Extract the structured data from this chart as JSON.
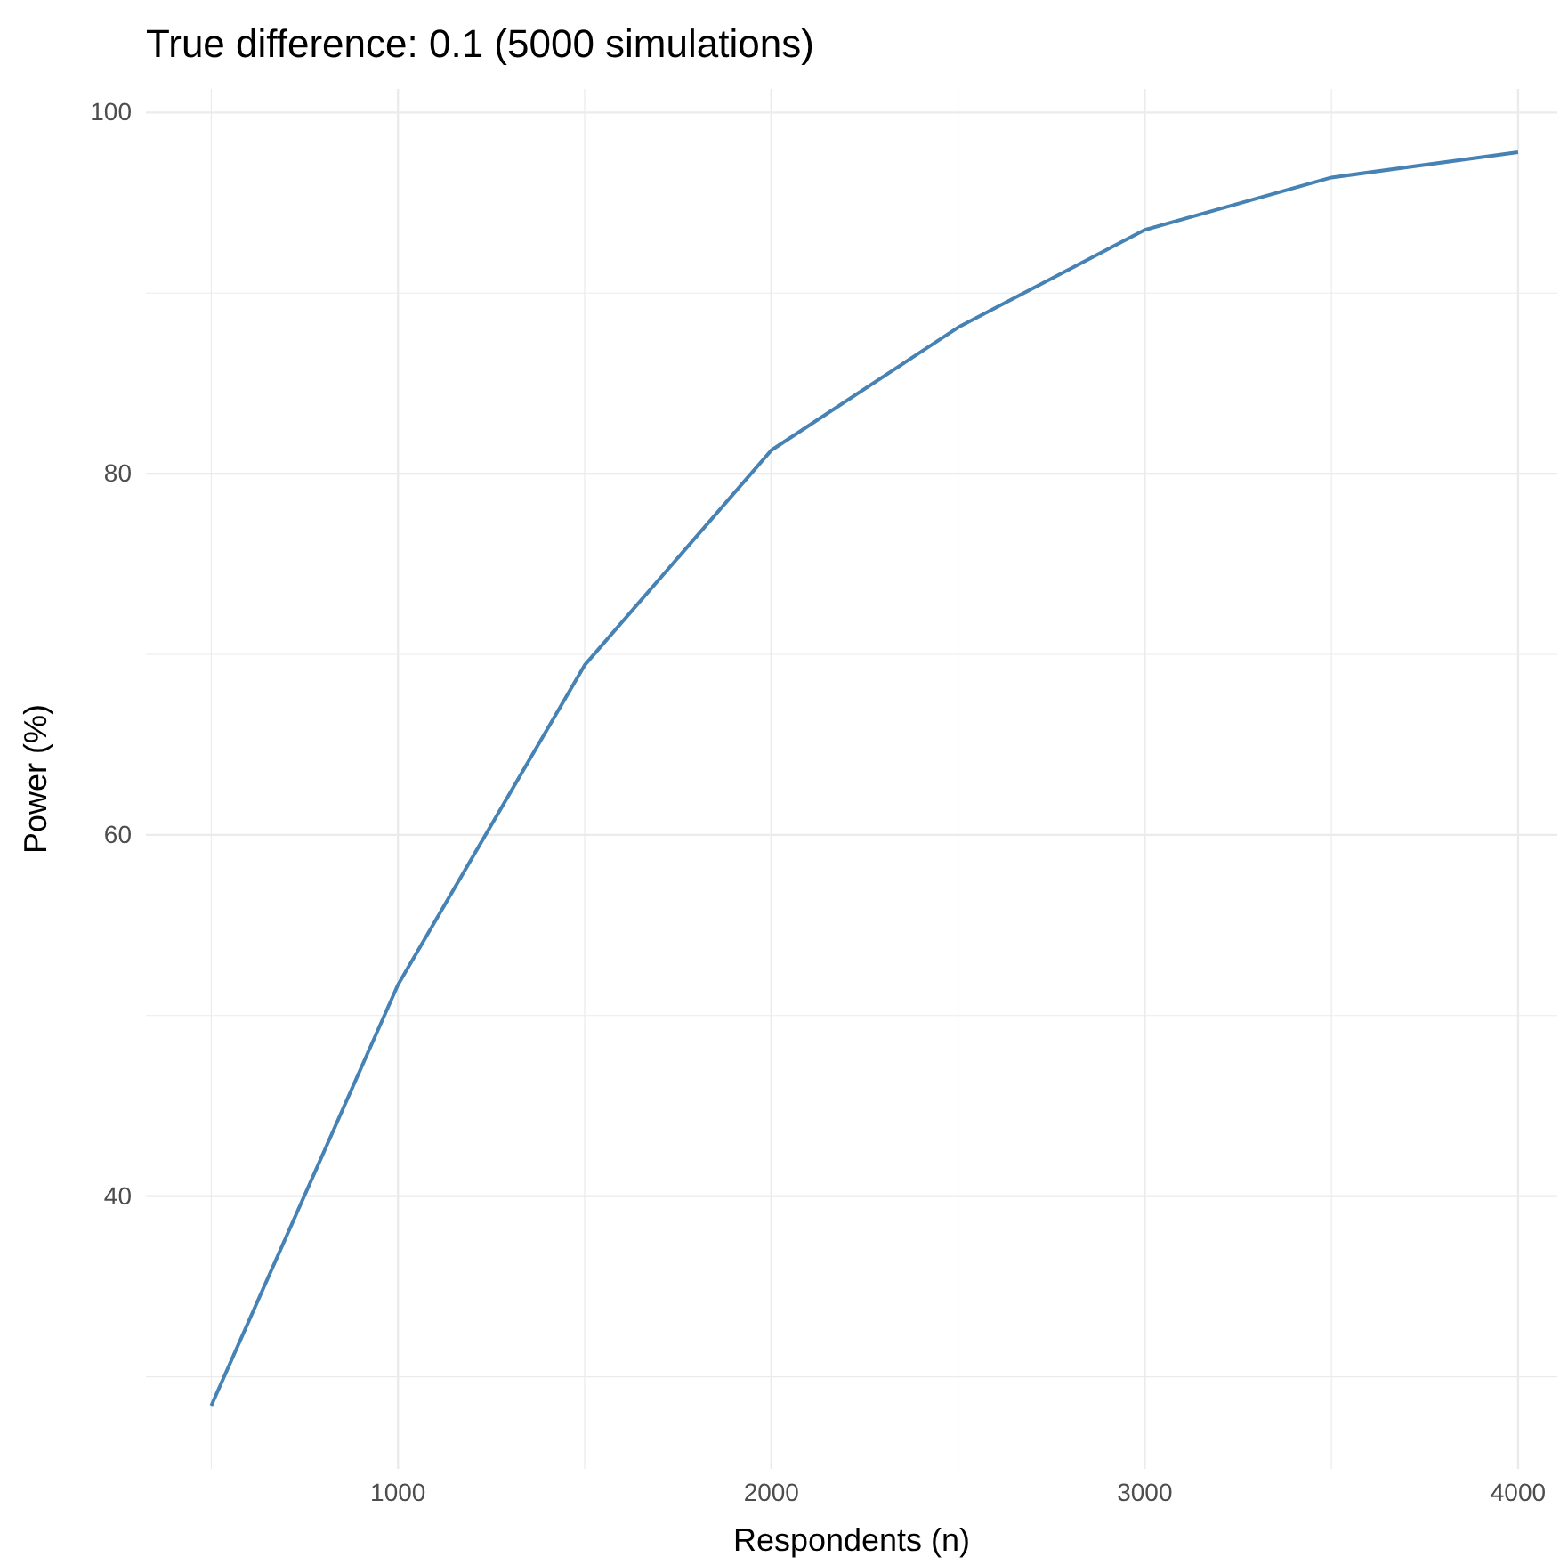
{
  "chart_data": {
    "type": "line",
    "title": "True difference: 0.1 (5000 simulations)",
    "xlabel": "Respondents (n)",
    "ylabel": "Power (%)",
    "x": [
      500,
      1000,
      1500,
      2000,
      2500,
      3000,
      3500,
      4000
    ],
    "series": [
      {
        "color": "#4682b4",
        "values": [
          28.4,
          51.7,
          69.4,
          81.3,
          88.1,
          93.5,
          96.4,
          97.8
        ]
      }
    ],
    "xlim": [
      325,
      4105
    ],
    "ylim": [
      24.9,
      101.3
    ],
    "xticks": [
      {
        "value": 500,
        "label": null
      },
      1000,
      {
        "value": 1500,
        "label": null
      },
      2000,
      {
        "value": 2500,
        "label": null
      },
      3000,
      {
        "value": 3500,
        "label": null
      },
      4000
    ],
    "yticks": [
      {
        "value": 30,
        "label": null
      },
      40,
      {
        "value": 50,
        "label": null
      },
      60,
      {
        "value": 70,
        "label": null
      },
      80,
      {
        "value": 90,
        "label": null
      },
      100
    ],
    "grid": true,
    "marker": "none",
    "line_style": "solid"
  }
}
